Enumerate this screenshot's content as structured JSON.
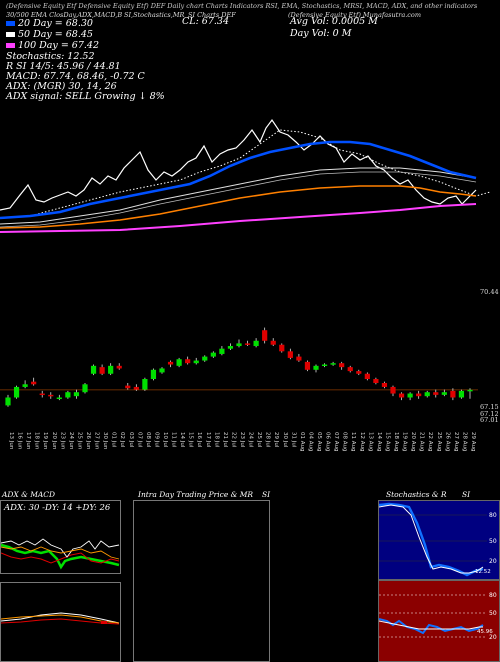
{
  "header": {
    "top_line": "(Defensive Equity Etf Defensive Equity Etf) DEF Daily chart Charts Indicators RSI, EMA, Stochastics, MRSI, MACD, ADX, and other indicators",
    "candles_info": "30/500 EMA ClosDay,ADX,MACD,B",
    "indicators_short": "SI,Stochastics,MR",
    "chart_label": "SI Charts DEF",
    "company": "(Defensive Equity Etf) Munafasutra.com",
    "close_label": "CL: 67.34",
    "avg_vol": "Avg Vol: 0.0005  M",
    "day_vol": "Day Vol: 0  M",
    "legend": [
      {
        "label": "20 Day = 68.30",
        "color": "#0050ff"
      },
      {
        "label": "50 Day = 68.45",
        "color": "#ffffff"
      },
      {
        "label": "100 Day = 67.42",
        "color": "#ff40ff"
      }
    ],
    "stoch_line": "Stochastics: 12.52",
    "rsi_line": "R        SI 14/5: 45.96 / 44.81",
    "macd_line": "MACD: 67.74, 68.46, -0.72  C",
    "adx_line": "ADX:                    (MGR) 30, 14, 26",
    "adx_signal": "ADX signal: SELL Growing ↓ 8%"
  },
  "price_labels": {
    "top_right": "70.44",
    "bottom_right": [
      "67.15",
      "67.12",
      "67.01"
    ]
  },
  "dates": [
    "13 Jun",
    "16 Jun",
    "17 Jun",
    "18 Jun",
    "19 Jun",
    "20 Jun",
    "23 Jun",
    "24 Jun",
    "25 Jun",
    "26 Jun",
    "27 Jun",
    "30 Jun",
    "01 Jul",
    "02 Jul",
    "03 Jul",
    "07 Jul",
    "08 Jul",
    "09 Jul",
    "10 Jul",
    "11 Jul",
    "14 Jul",
    "15 Jul",
    "16 Jul",
    "17 Jul",
    "18 Jul",
    "21 Jul",
    "22 Jul",
    "23 Jul",
    "24 Jul",
    "25 Jul",
    "28 Jul",
    "29 Jul",
    "30 Jul",
    "31 Jul",
    "01 Aug",
    "04 Aug",
    "05 Aug",
    "06 Aug",
    "07 Aug",
    "08 Aug",
    "11 Aug",
    "12 Aug",
    "13 Aug",
    "14 Aug",
    "15 Aug",
    "18 Aug",
    "19 Aug",
    "20 Aug",
    "21 Aug",
    "22 Aug",
    "25 Aug",
    "26 Aug",
    "27 Aug",
    "28 Aug",
    "29 Aug"
  ],
  "panels": {
    "adx_title": "ADX  & MACD",
    "adx_readout": "ADX: 30  -DY: 14  +DY: 26",
    "intraday_title": "Intra  Day Trading Price  & MR",
    "intraday_si": "SI",
    "stoch_title": "Stochastics & R",
    "stoch_si": "SI",
    "stoch_ticks": [
      "80",
      "50",
      "20"
    ],
    "stoch_value": "12.52",
    "rsi_ticks": [
      "80",
      "50",
      "20"
    ],
    "rsi_value": "45.96"
  },
  "chart_data": {
    "type": "candlestick",
    "ylim": [
      66.5,
      71.2
    ],
    "candles": [
      {
        "o": 66.75,
        "c": 67.05,
        "h": 67.15,
        "l": 66.7
      },
      {
        "o": 67.05,
        "c": 67.45,
        "h": 67.5,
        "l": 67.0
      },
      {
        "o": 67.45,
        "c": 67.55,
        "h": 67.7,
        "l": 67.4
      },
      {
        "o": 67.65,
        "c": 67.55,
        "h": 67.8,
        "l": 67.5
      },
      {
        "o": 67.2,
        "c": 67.15,
        "h": 67.3,
        "l": 67.05
      },
      {
        "o": 67.15,
        "c": 67.1,
        "h": 67.25,
        "l": 67.0
      },
      {
        "o": 67.0,
        "c": 67.05,
        "h": 67.15,
        "l": 66.95
      },
      {
        "o": 67.05,
        "c": 67.25,
        "h": 67.3,
        "l": 67.0
      },
      {
        "o": 67.1,
        "c": 67.25,
        "h": 67.35,
        "l": 67.0
      },
      {
        "o": 67.25,
        "c": 67.55,
        "h": 67.6,
        "l": 67.2
      },
      {
        "o": 67.95,
        "c": 68.25,
        "h": 68.3,
        "l": 67.9
      },
      {
        "o": 68.2,
        "c": 67.95,
        "h": 68.3,
        "l": 67.9
      },
      {
        "o": 67.95,
        "c": 68.25,
        "h": 68.35,
        "l": 67.9
      },
      {
        "o": 68.25,
        "c": 68.15,
        "h": 68.35,
        "l": 68.1
      },
      {
        "o": 67.5,
        "c": 67.4,
        "h": 67.6,
        "l": 67.35
      },
      {
        "o": 67.45,
        "c": 67.35,
        "h": 67.55,
        "l": 67.3
      },
      {
        "o": 67.35,
        "c": 67.75,
        "h": 67.8,
        "l": 67.3
      },
      {
        "o": 67.75,
        "c": 68.1,
        "h": 68.15,
        "l": 67.7
      },
      {
        "o": 68.0,
        "c": 68.15,
        "h": 68.2,
        "l": 67.95
      },
      {
        "o": 68.4,
        "c": 68.3,
        "h": 68.45,
        "l": 68.2
      },
      {
        "o": 68.25,
        "c": 68.5,
        "h": 68.55,
        "l": 68.2
      },
      {
        "o": 68.5,
        "c": 68.35,
        "h": 68.6,
        "l": 68.3
      },
      {
        "o": 68.35,
        "c": 68.45,
        "h": 68.55,
        "l": 68.3
      },
      {
        "o": 68.45,
        "c": 68.6,
        "h": 68.65,
        "l": 68.4
      },
      {
        "o": 68.6,
        "c": 68.75,
        "h": 68.8,
        "l": 68.55
      },
      {
        "o": 68.7,
        "c": 68.9,
        "h": 69.0,
        "l": 68.65
      },
      {
        "o": 68.9,
        "c": 69.0,
        "h": 69.1,
        "l": 68.85
      },
      {
        "o": 69.0,
        "c": 69.1,
        "h": 69.25,
        "l": 68.95
      },
      {
        "o": 69.1,
        "c": 69.05,
        "h": 69.2,
        "l": 69.0
      },
      {
        "o": 69.0,
        "c": 69.2,
        "h": 69.3,
        "l": 68.95
      },
      {
        "o": 69.6,
        "c": 69.2,
        "h": 69.7,
        "l": 69.1
      },
      {
        "o": 69.2,
        "c": 69.05,
        "h": 69.3,
        "l": 69.0
      },
      {
        "o": 69.05,
        "c": 68.8,
        "h": 69.1,
        "l": 68.75
      },
      {
        "o": 68.8,
        "c": 68.55,
        "h": 68.9,
        "l": 68.5
      },
      {
        "o": 68.6,
        "c": 68.45,
        "h": 68.7,
        "l": 68.4
      },
      {
        "o": 68.4,
        "c": 68.1,
        "h": 68.45,
        "l": 68.05
      },
      {
        "o": 68.1,
        "c": 68.25,
        "h": 68.3,
        "l": 68.0
      },
      {
        "o": 68.25,
        "c": 68.3,
        "h": 68.35,
        "l": 68.2
      },
      {
        "o": 68.3,
        "c": 68.35,
        "h": 68.4,
        "l": 68.25
      },
      {
        "o": 68.35,
        "c": 68.2,
        "h": 68.4,
        "l": 68.1
      },
      {
        "o": 68.2,
        "c": 68.05,
        "h": 68.25,
        "l": 68.0
      },
      {
        "o": 68.05,
        "c": 67.95,
        "h": 68.1,
        "l": 67.9
      },
      {
        "o": 67.95,
        "c": 67.75,
        "h": 68.0,
        "l": 67.7
      },
      {
        "o": 67.75,
        "c": 67.6,
        "h": 67.8,
        "l": 67.55
      },
      {
        "o": 67.6,
        "c": 67.45,
        "h": 67.65,
        "l": 67.4
      },
      {
        "o": 67.45,
        "c": 67.2,
        "h": 67.5,
        "l": 67.1
      },
      {
        "o": 67.2,
        "c": 67.05,
        "h": 67.25,
        "l": 66.95
      },
      {
        "o": 67.05,
        "c": 67.2,
        "h": 67.25,
        "l": 66.95
      },
      {
        "o": 67.2,
        "c": 67.1,
        "h": 67.3,
        "l": 67.0
      },
      {
        "o": 67.1,
        "c": 67.25,
        "h": 67.3,
        "l": 67.05
      },
      {
        "o": 67.25,
        "c": 67.15,
        "h": 67.35,
        "l": 67.05
      },
      {
        "o": 67.15,
        "c": 67.25,
        "h": 67.35,
        "l": 67.1
      },
      {
        "o": 67.3,
        "c": 67.05,
        "h": 67.4,
        "l": 66.95
      },
      {
        "o": 67.05,
        "c": 67.3,
        "h": 67.35,
        "l": 67.0
      },
      {
        "o": 67.3,
        "c": 67.34,
        "h": 67.4,
        "l": 67.0
      }
    ],
    "colors": {
      "up": "#00e000",
      "down": "#e00000"
    }
  }
}
